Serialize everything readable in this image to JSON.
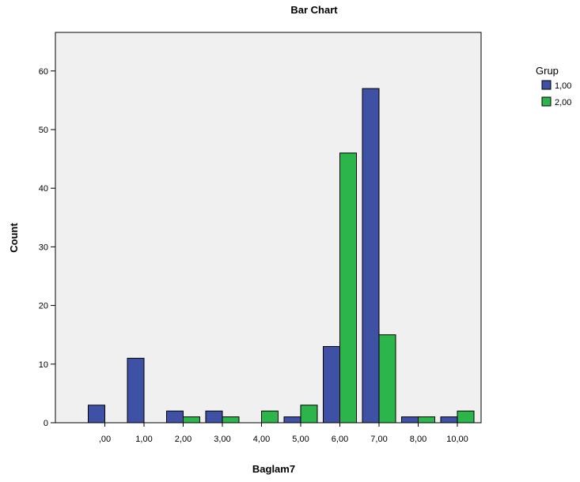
{
  "chart_data": {
    "type": "bar",
    "title": "Bar Chart",
    "xlabel": "Baglam7",
    "ylabel": "Count",
    "categories": [
      ",00",
      "1,00",
      "2,00",
      "3,00",
      "4,00",
      "5,00",
      "6,00",
      "7,00",
      "8,00",
      "10,00"
    ],
    "series": [
      {
        "name": "1,00",
        "color": "#3f51a5",
        "values": [
          3,
          11,
          2,
          2,
          0,
          1,
          13,
          57,
          1,
          1
        ]
      },
      {
        "name": "2,00",
        "color": "#2bb54b",
        "values": [
          0,
          0,
          1,
          1,
          2,
          3,
          46,
          15,
          1,
          2
        ]
      }
    ],
    "ylim": [
      0,
      63
    ],
    "yticks": [
      0,
      10,
      20,
      30,
      40,
      50,
      60
    ],
    "legend": {
      "title": "Grup",
      "position": "right"
    },
    "grid": false,
    "plot_background": "#f0f0f0"
  }
}
